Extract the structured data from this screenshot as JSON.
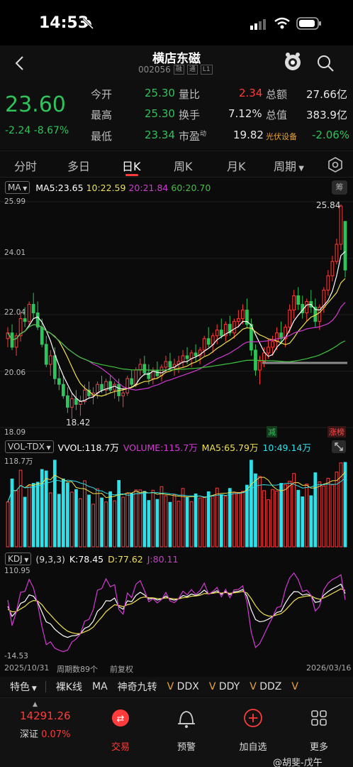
{
  "status_bar": {
    "time": "14:53"
  },
  "header": {
    "title": "横店东磁",
    "code": "002056",
    "tags": [
      "融",
      "通",
      "L1"
    ]
  },
  "quote": {
    "price": "23.60",
    "change": "-2.24",
    "change_pct": "-8.67%",
    "fields": [
      {
        "label": "今开",
        "value": "25.30"
      },
      {
        "label": "量比",
        "value": "2.34"
      },
      {
        "label": "总额",
        "value": "27.66亿"
      },
      {
        "label": "最高",
        "value": "25.30"
      },
      {
        "label": "换手",
        "value": "7.12%"
      },
      {
        "label": "总值",
        "value": "383.9亿"
      },
      {
        "label": "最低",
        "value": "23.34"
      },
      {
        "label": "市盈",
        "label_sup": "动",
        "value": "19.82"
      },
      {
        "label": "光伏设备",
        "value": "-2.06%"
      }
    ]
  },
  "tabs": [
    "分时",
    "多日",
    "日K",
    "周K",
    "月K",
    "周期"
  ],
  "active_tab": "日K",
  "ma_legend": {
    "name": "MA",
    "ma5": "MA5:23.65",
    "ma10": "10:22.59",
    "ma20": "20:21.84",
    "ma60": "60:20.70",
    "chip": "筹"
  },
  "price_axis": {
    "top": "25.99",
    "mid1": "24.01",
    "mid2": "22.04",
    "mid3": "20.06",
    "bottom": "18.09",
    "high_mark": "25.84",
    "low_mark": "18.42"
  },
  "flags": {
    "reduce": "减",
    "limit_up": "涨榜"
  },
  "vol_legend": {
    "name": "VOL-TDX",
    "vvol": "VVOL:118.7万",
    "volume": "VOLUME:115.7万",
    "ma5": "MA5:65.79万",
    "ma10": "10:49.14万",
    "axis_top": "118.7万"
  },
  "kdj_legend": {
    "name": "KDJ",
    "params": "(9,3,3)",
    "k": "K:78.45",
    "d": "D:77.62",
    "j": "J:80.11",
    "axis_top": "110.95",
    "axis_bottom": "-14.53"
  },
  "footer": {
    "start_date": "2025/10/31",
    "period_count": "周期数89个",
    "adjust": "前复权",
    "end_date": "2026/03/16"
  },
  "indicators": [
    "特色",
    "裸K线",
    "MA",
    "神奇九转",
    "DDX",
    "DDY",
    "DDZ"
  ],
  "bottom_nav": {
    "index_value": "14291.26",
    "index_name": "深证",
    "index_pct": "0.07%",
    "items": [
      "交易",
      "预警",
      "加自选",
      "更多"
    ]
  },
  "watermark": "@胡斐-戊午",
  "colors": {
    "up": "#ff3b3b",
    "down": "#2ec45a",
    "ma5": "#ffffff",
    "ma10": "#f0e04a",
    "ma20": "#d23ad2",
    "ma60": "#3ec43e",
    "vol_up": "#ff3b3b",
    "vol_down": "#2ee0e8"
  },
  "chart_data": {
    "type": "candlestick",
    "ylim": [
      18.09,
      25.99
    ],
    "candles": [
      [
        21.2,
        21.6,
        20.9,
        21.4
      ],
      [
        21.4,
        21.7,
        20.8,
        20.9
      ],
      [
        20.9,
        21.4,
        20.6,
        21.3
      ],
      [
        21.3,
        22.1,
        21.1,
        21.9
      ],
      [
        21.9,
        22.3,
        21.6,
        21.8
      ],
      [
        21.8,
        22.5,
        21.6,
        22.4
      ],
      [
        22.4,
        22.8,
        21.9,
        22.1
      ],
      [
        22.1,
        22.5,
        21.5,
        21.6
      ],
      [
        21.6,
        21.9,
        20.9,
        21.0
      ],
      [
        21.0,
        21.3,
        20.2,
        20.3
      ],
      [
        20.3,
        20.8,
        19.9,
        20.6
      ],
      [
        20.6,
        20.9,
        19.6,
        19.8
      ],
      [
        19.8,
        20.2,
        19.4,
        19.6
      ],
      [
        19.6,
        19.9,
        19.1,
        19.2
      ],
      [
        19.2,
        19.5,
        18.6,
        18.8
      ],
      [
        18.8,
        19.3,
        18.4,
        19.1
      ],
      [
        19.1,
        19.4,
        18.7,
        18.9
      ],
      [
        18.9,
        19.2,
        18.5,
        19.0
      ],
      [
        19.0,
        19.6,
        18.9,
        19.4
      ],
      [
        19.4,
        19.7,
        19.1,
        19.2
      ],
      [
        19.2,
        19.5,
        18.9,
        19.3
      ],
      [
        19.3,
        19.7,
        19.1,
        19.6
      ],
      [
        19.6,
        19.9,
        19.3,
        19.4
      ],
      [
        19.4,
        19.8,
        19.2,
        19.7
      ],
      [
        19.7,
        19.9,
        19.3,
        19.4
      ],
      [
        19.4,
        19.7,
        19.1,
        19.6
      ],
      [
        19.6,
        19.8,
        19.0,
        19.2
      ],
      [
        19.2,
        19.5,
        18.8,
        19.3
      ],
      [
        19.3,
        19.9,
        19.2,
        19.8
      ],
      [
        19.8,
        20.1,
        19.5,
        19.6
      ],
      [
        19.6,
        20.2,
        19.5,
        20.1
      ],
      [
        20.1,
        20.5,
        19.9,
        20.3
      ],
      [
        20.3,
        20.6,
        19.9,
        20.0
      ],
      [
        20.0,
        20.3,
        19.6,
        19.8
      ],
      [
        19.8,
        20.2,
        19.6,
        20.1
      ],
      [
        20.1,
        20.4,
        19.8,
        19.9
      ],
      [
        19.9,
        20.3,
        19.7,
        20.2
      ],
      [
        20.2,
        20.6,
        20.0,
        20.4
      ],
      [
        20.4,
        20.7,
        20.1,
        20.2
      ],
      [
        20.2,
        20.5,
        19.9,
        20.3
      ],
      [
        20.3,
        20.6,
        20.0,
        20.4
      ],
      [
        20.4,
        20.8,
        20.2,
        20.6
      ],
      [
        20.6,
        20.9,
        20.3,
        20.5
      ],
      [
        20.5,
        20.8,
        20.2,
        20.7
      ],
      [
        20.7,
        21.0,
        20.4,
        20.6
      ],
      [
        20.6,
        20.9,
        20.3,
        20.8
      ],
      [
        20.8,
        21.3,
        20.6,
        21.2
      ],
      [
        21.2,
        21.6,
        20.9,
        21.0
      ],
      [
        21.0,
        21.4,
        20.7,
        21.3
      ],
      [
        21.3,
        21.7,
        21.0,
        21.5
      ],
      [
        21.5,
        21.9,
        21.2,
        21.3
      ],
      [
        21.3,
        21.8,
        21.1,
        21.7
      ],
      [
        21.7,
        22.0,
        21.3,
        21.4
      ],
      [
        21.4,
        21.9,
        21.2,
        21.8
      ],
      [
        21.8,
        22.2,
        21.6,
        21.9
      ],
      [
        21.9,
        22.4,
        21.7,
        22.2
      ],
      [
        22.2,
        22.6,
        21.6,
        21.7
      ],
      [
        21.7,
        21.9,
        20.6,
        20.8
      ],
      [
        20.8,
        21.0,
        19.9,
        20.1
      ],
      [
        20.1,
        20.6,
        19.6,
        20.4
      ],
      [
        20.4,
        20.9,
        20.2,
        20.7
      ],
      [
        20.7,
        21.2,
        20.5,
        20.9
      ],
      [
        20.9,
        21.3,
        20.6,
        21.1
      ],
      [
        21.1,
        21.6,
        20.8,
        21.4
      ],
      [
        21.4,
        21.8,
        21.0,
        21.2
      ],
      [
        21.2,
        21.7,
        20.9,
        21.6
      ],
      [
        21.6,
        22.4,
        21.4,
        22.2
      ],
      [
        22.2,
        22.9,
        21.9,
        22.7
      ],
      [
        22.7,
        23.0,
        22.2,
        22.4
      ],
      [
        22.4,
        22.7,
        21.9,
        22.1
      ],
      [
        22.1,
        22.6,
        21.8,
        22.5
      ],
      [
        22.5,
        22.9,
        22.1,
        22.3
      ],
      [
        22.3,
        22.6,
        21.6,
        21.8
      ],
      [
        21.8,
        22.4,
        21.5,
        22.3
      ],
      [
        22.3,
        23.0,
        22.1,
        22.9
      ],
      [
        22.9,
        23.6,
        22.7,
        23.4
      ],
      [
        23.4,
        24.1,
        23.2,
        23.9
      ],
      [
        23.9,
        24.7,
        23.8,
        24.5
      ],
      [
        24.5,
        25.9,
        24.3,
        25.84
      ],
      [
        25.3,
        25.3,
        23.34,
        23.6
      ]
    ],
    "volume_ylim": [
      0,
      118.7
    ],
    "kdj_ylim": [
      -14.53,
      110.95
    ]
  }
}
